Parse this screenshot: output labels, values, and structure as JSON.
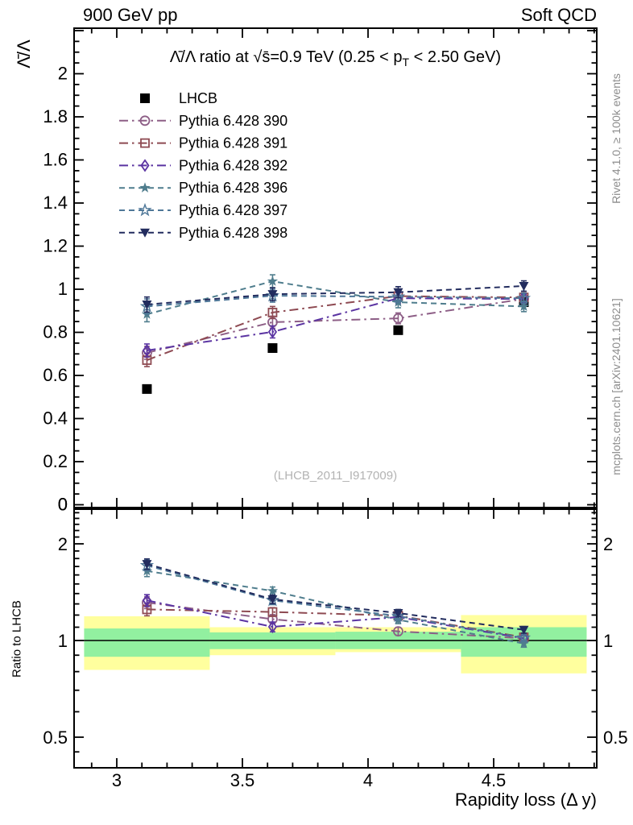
{
  "header": {
    "left": "900 GeV pp",
    "right": "Soft QCD"
  },
  "side_notes": {
    "rivet": "Rivet 4.1.0, ≥ 100k events",
    "mcplots": "mcplots.cern.ch [arXiv:2401.10621]"
  },
  "watermark": "(LHCB_2011_I917009)",
  "chart_data": {
    "type": "scatter",
    "title": {
      "full": "Λ̄/Λ ratio at √s̄=0.9 TeV (0.25 < pT < 2.50 GeV)",
      "pre_sub": "Λ̄/Λ ratio at √s̄=0.9 TeV (0.25 < p",
      "sub": "T",
      "post_sub": " < 2.50 GeV)"
    },
    "xlabel": "Rapidity loss (Δ y)",
    "ylabel_main": "Λ̄/Λ",
    "ylabel_ratio": "Ratio to LHCB",
    "xlim": [
      2.83,
      4.91
    ],
    "x_major_ticks": [
      3,
      3.5,
      4,
      4.5
    ],
    "x_minor_step": 0.1,
    "main_panel": {
      "ylim": [
        0,
        2.21
      ],
      "yticks": [
        0,
        0.2,
        0.4,
        0.6,
        0.8,
        1,
        1.2,
        1.4,
        1.6,
        1.8,
        2
      ],
      "minor_step": 0.05
    },
    "ratio_panel": {
      "yscale": "log",
      "ylim": [
        0.401,
        2.56
      ],
      "yticks_labeled": [
        0.5,
        1,
        2
      ],
      "yticks_minor": [
        0.45,
        0.6,
        0.7,
        0.8,
        0.9,
        1.1,
        1.2,
        1.3,
        1.4,
        1.5,
        1.6,
        1.7,
        1.8,
        1.9,
        2.1,
        2.2,
        2.3,
        2.4,
        2.5
      ],
      "reference_line": 1
    },
    "x": [
      3.12,
      3.62,
      4.12,
      4.62
    ],
    "series": [
      {
        "name": "LHCB",
        "marker": "square-filled",
        "color": "#000000",
        "line": "none",
        "in_ratio": false,
        "values": [
          0.537,
          0.727,
          0.81,
          0.94
        ],
        "errors": [
          0,
          0,
          0,
          0
        ]
      },
      {
        "name": "Pythia 6.428 390",
        "marker": "circle-open",
        "color": "#8d5e86",
        "line": "dashdot",
        "in_ratio": true,
        "values": [
          0.705,
          0.847,
          0.865,
          0.955
        ],
        "errors": [
          0.03,
          0.028,
          0.025,
          0.022
        ]
      },
      {
        "name": "Pythia 6.428 391",
        "marker": "square-open",
        "color": "#8e4a52",
        "line": "dashdot",
        "in_ratio": true,
        "values": [
          0.671,
          0.892,
          0.968,
          0.962
        ],
        "errors": [
          0.03,
          0.028,
          0.025,
          0.022
        ]
      },
      {
        "name": "Pythia 6.428 392",
        "marker": "diamond-open",
        "color": "#5b34a2",
        "line": "dashdot",
        "in_ratio": true,
        "values": [
          0.716,
          0.802,
          0.958,
          0.955
        ],
        "errors": [
          0.03,
          0.028,
          0.025,
          0.022
        ]
      },
      {
        "name": "Pythia 6.428 396",
        "marker": "star-filled",
        "color": "#4f7d8d",
        "line": "dash",
        "in_ratio": true,
        "values": [
          0.884,
          1.037,
          0.94,
          0.92
        ],
        "errors": [
          0.035,
          0.03,
          0.026,
          0.024
        ]
      },
      {
        "name": "Pythia 6.428 397",
        "marker": "star-open",
        "color": "#4e7798",
        "line": "dash",
        "in_ratio": true,
        "values": [
          0.92,
          0.97,
          0.965,
          0.958
        ],
        "errors": [
          0.035,
          0.03,
          0.026,
          0.024
        ]
      },
      {
        "name": "Pythia 6.428 398",
        "marker": "triangle-down-filled",
        "color": "#222c5e",
        "line": "dash",
        "in_ratio": true,
        "values": [
          0.929,
          0.977,
          0.986,
          1.015
        ],
        "errors": [
          0.035,
          0.03,
          0.026,
          0.024
        ]
      }
    ],
    "ratio_is": "series value divided by LHCB value",
    "bands": {
      "bin_edges": [
        2.87,
        3.37,
        3.87,
        4.37,
        4.87
      ],
      "yellow": [
        [
          0.81,
          1.19
        ],
        [
          0.9,
          1.1
        ],
        [
          0.92,
          1.1
        ],
        [
          0.79,
          1.2
        ]
      ],
      "green": [
        [
          0.89,
          1.09
        ],
        [
          0.94,
          1.06
        ],
        [
          0.94,
          1.065
        ],
        [
          0.89,
          1.1
        ]
      ],
      "yellow_color": "#ffff9e",
      "green_color": "#92f0a0"
    },
    "legend_position": "top-left"
  }
}
